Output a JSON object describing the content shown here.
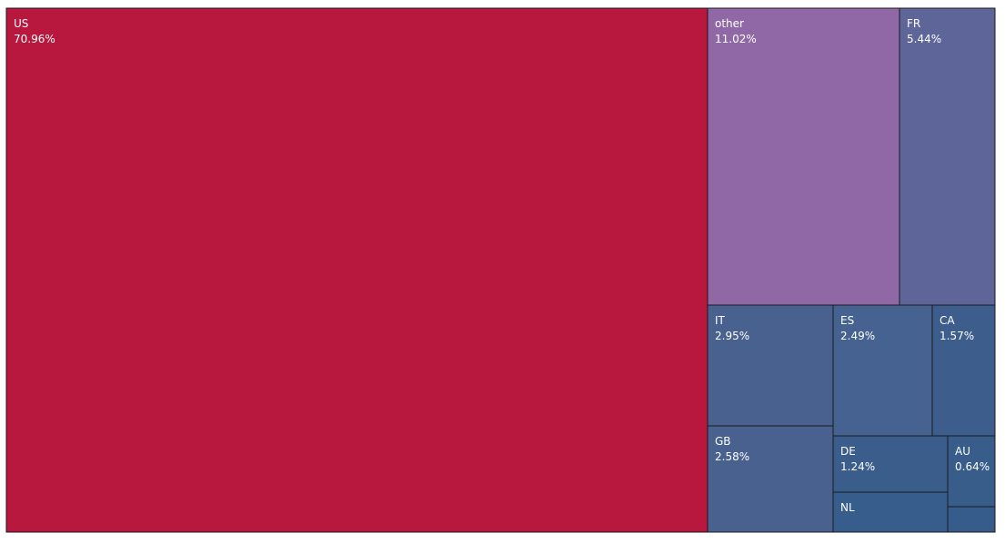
{
  "chart_data": {
    "type": "treemap",
    "title": "",
    "tiles": [
      {
        "name": "US",
        "label": "US",
        "value_label": "70.96%",
        "value": 70.96,
        "color": "#b8173e"
      },
      {
        "name": "other",
        "label": "other",
        "value_label": "11.02%",
        "value": 11.02,
        "color": "#9068a6"
      },
      {
        "name": "FR",
        "label": "FR",
        "value_label": "5.44%",
        "value": 5.44,
        "color": "#5e6599"
      },
      {
        "name": "IT",
        "label": "IT",
        "value_label": "2.95%",
        "value": 2.95,
        "color": "#48618f"
      },
      {
        "name": "GB",
        "label": "GB",
        "value_label": "2.58%",
        "value": 2.58,
        "color": "#48618f"
      },
      {
        "name": "ES",
        "label": "ES",
        "value_label": "2.49%",
        "value": 2.49,
        "color": "#456290"
      },
      {
        "name": "CA",
        "label": "CA",
        "value_label": "1.57%",
        "value": 1.57,
        "color": "#3d5e8d"
      },
      {
        "name": "DE",
        "label": "DE",
        "value_label": "1.24%",
        "value": 1.24,
        "color": "#3b5d8c"
      },
      {
        "name": "AU",
        "label": "AU",
        "value_label": "0.64%",
        "value": 0.64,
        "color": "#385d8b"
      },
      {
        "name": "NL",
        "label": "NL",
        "value_label": "",
        "value": 0.6,
        "color": "#365d8b"
      },
      {
        "name": "unlabeled",
        "label": "",
        "value_label": "",
        "value": 0.5,
        "color": "#355c8a"
      }
    ]
  }
}
